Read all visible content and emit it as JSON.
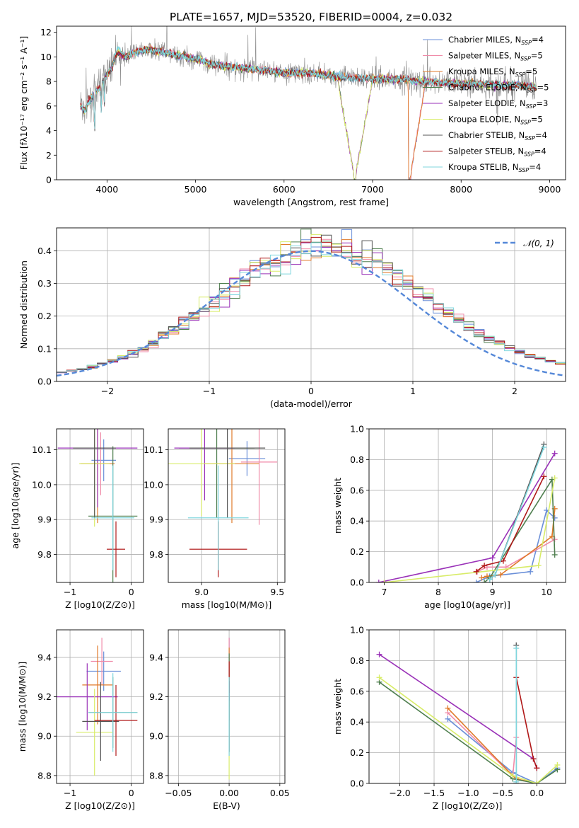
{
  "figure_title": "PLATE=1657, MJD=53520, FIBERID=0004, z=0.032",
  "colors": {
    "Chabrier MILES": "#6a8fd8",
    "Salpeter MILES": "#f08aa8",
    "Kroupa MILES": "#e07a2a",
    "Chabrier ELODIE": "#4f7f4f",
    "Salpeter ELODIE": "#9a32b8",
    "Kroupa ELODIE": "#d8ec68",
    "Chabrier STELIB": "#555555",
    "Salpeter STELIB": "#b01818",
    "Kroupa STELIB": "#7fd6de",
    "data": "#8a8a8a",
    "normal": "#5588d8"
  },
  "chart_data": [
    {
      "id": "spectrum",
      "type": "line",
      "title": "PLATE=1657, MJD=53520, FIBERID=0004, z=0.032",
      "xlabel": "wavelength [Angstrom, rest frame]",
      "ylabel": "Flux [fλ10⁻¹⁷ erg cm⁻² s⁻¹ A⁻¹]",
      "xlim": [
        3430,
        9180
      ],
      "ylim": [
        0,
        12.5
      ],
      "xticks": [
        4000,
        5000,
        6000,
        7000,
        8000,
        9000
      ],
      "yticks": [
        0,
        2,
        4,
        6,
        8,
        10,
        12
      ],
      "grid": false,
      "legend_position": "top-right",
      "x": [
        3700,
        3750,
        3800,
        3850,
        3900,
        3950,
        4000,
        4050,
        4100,
        4150,
        4200,
        4300,
        4400,
        4500,
        4600,
        4700,
        4800,
        4900,
        5000,
        5200,
        5400,
        5600,
        5800,
        6000,
        6200,
        6400,
        6600,
        6800,
        7000,
        7200,
        7400,
        7420,
        7600,
        7800,
        8000,
        8200,
        8400,
        8600,
        8800,
        8850
      ],
      "series": [
        {
          "name": "Chabrier MILES, N_SSP=4",
          "values": [
            6.0,
            5.6,
            6.4,
            6.9,
            7.4,
            7.9,
            8.6,
            9.0,
            10.2,
            10.3,
            10.0,
            10.3,
            10.5,
            10.6,
            10.4,
            10.3,
            10.1,
            10.0,
            9.8,
            9.4,
            9.2,
            9.0,
            8.9,
            8.7,
            8.7,
            8.6,
            8.4,
            8.3,
            8.2,
            8.2,
            8.2,
            0,
            8.0,
            7.9,
            7.8,
            7.8,
            7.7,
            7.7,
            7.6,
            7.6
          ]
        },
        {
          "name": "Salpeter MILES, N_SSP=5",
          "values": [
            6.0,
            5.6,
            6.4,
            6.9,
            7.4,
            7.9,
            8.6,
            9.0,
            10.2,
            10.3,
            10.0,
            10.3,
            10.5,
            10.6,
            10.4,
            10.3,
            10.1,
            10.0,
            9.8,
            9.4,
            9.2,
            9.0,
            8.9,
            8.7,
            8.7,
            8.6,
            8.4,
            8.3,
            8.2,
            8.2,
            8.2,
            0,
            8.0,
            7.9,
            7.8,
            7.8,
            7.7,
            7.7,
            7.6,
            7.6
          ]
        },
        {
          "name": "Kroupa MILES, N_SSP=5",
          "values": [
            6.0,
            5.6,
            6.4,
            6.9,
            7.4,
            7.9,
            8.6,
            9.0,
            10.2,
            10.3,
            10.0,
            10.3,
            10.5,
            10.6,
            10.4,
            10.3,
            10.1,
            10.0,
            9.8,
            9.4,
            9.2,
            9.0,
            8.9,
            8.7,
            8.7,
            8.6,
            8.4,
            8.3,
            8.2,
            8.2,
            8.2,
            0,
            8.0,
            7.9,
            7.8,
            7.8,
            7.7,
            7.7,
            7.6,
            7.6
          ]
        },
        {
          "name": "Chabrier ELODIE, N_SSP=5",
          "values": [
            6.0,
            5.6,
            6.4,
            6.9,
            7.4,
            7.9,
            8.6,
            9.0,
            10.2,
            10.3,
            10.0,
            10.3,
            10.5,
            10.6,
            10.4,
            10.3,
            10.1,
            10.0,
            9.8,
            9.4,
            9.2,
            9.0,
            8.9,
            8.7,
            8.7,
            8.6,
            8.4,
            0,
            8.2,
            8.2,
            8.2,
            8.1,
            8.0,
            7.9,
            7.8,
            7.8,
            7.7,
            7.7,
            7.6,
            7.6
          ]
        },
        {
          "name": "Salpeter ELODIE, N_SSP=3",
          "values": [
            6.0,
            5.6,
            6.4,
            6.9,
            7.4,
            7.9,
            8.6,
            9.0,
            10.2,
            10.3,
            10.0,
            10.3,
            10.5,
            10.6,
            10.4,
            10.3,
            10.1,
            10.0,
            9.8,
            9.4,
            9.2,
            9.0,
            8.9,
            8.7,
            8.7,
            8.6,
            8.4,
            0,
            8.2,
            8.2,
            8.2,
            8.1,
            8.0,
            7.9,
            7.8,
            7.8,
            7.7,
            7.7,
            7.6,
            7.6
          ]
        },
        {
          "name": "Kroupa ELODIE, N_SSP=5",
          "values": [
            6.0,
            5.6,
            6.4,
            6.9,
            7.4,
            7.9,
            8.6,
            9.0,
            10.2,
            10.3,
            10.0,
            10.3,
            10.5,
            10.6,
            10.4,
            10.3,
            10.1,
            10.0,
            9.8,
            9.4,
            9.2,
            9.0,
            8.9,
            8.7,
            8.7,
            8.6,
            8.4,
            0,
            8.2,
            8.2,
            8.2,
            8.1,
            8.0,
            7.9,
            7.8,
            7.8,
            7.7,
            7.7,
            7.6,
            7.6
          ]
        },
        {
          "name": "Chabrier STELIB, N_SSP=4",
          "values": [
            6.0,
            5.6,
            6.4,
            6.9,
            7.4,
            7.9,
            8.6,
            9.0,
            10.2,
            10.3,
            10.0,
            10.3,
            10.5,
            10.6,
            10.4,
            10.3,
            10.1,
            10.0,
            9.8,
            9.4,
            9.2,
            9.0,
            8.9,
            8.7,
            8.7,
            8.6,
            8.4,
            8.3,
            8.2,
            8.2,
            8.2,
            8.1,
            8.0,
            7.9,
            7.8,
            7.8,
            7.7,
            7.7,
            7.6,
            7.6
          ]
        },
        {
          "name": "Salpeter STELIB, N_SSP=4",
          "values": [
            6.0,
            5.6,
            6.4,
            6.9,
            7.4,
            7.9,
            8.6,
            9.0,
            10.2,
            10.3,
            10.0,
            10.3,
            10.5,
            10.6,
            10.4,
            10.3,
            10.1,
            10.0,
            9.8,
            9.4,
            9.2,
            9.0,
            8.9,
            8.7,
            8.7,
            8.6,
            8.4,
            8.3,
            8.2,
            8.2,
            8.2,
            8.1,
            8.0,
            7.9,
            7.8,
            7.8,
            7.7,
            7.7,
            7.6,
            7.6
          ]
        },
        {
          "name": "Kroupa STELIB, N_SSP=4",
          "values": [
            6.0,
            5.6,
            6.4,
            6.9,
            7.4,
            7.9,
            8.6,
            9.0,
            10.6,
            10.6,
            10.1,
            10.3,
            10.5,
            10.6,
            10.4,
            10.3,
            10.1,
            10.0,
            9.8,
            9.4,
            9.2,
            9.0,
            8.9,
            8.7,
            8.7,
            8.6,
            8.4,
            8.3,
            8.2,
            8.2,
            8.2,
            8.1,
            8.0,
            7.9,
            7.8,
            7.8,
            7.7,
            7.7,
            7.6,
            7.6
          ]
        }
      ]
    },
    {
      "id": "residuals",
      "type": "line",
      "xlabel": "(data-model)/error",
      "ylabel": "Normed distribution",
      "xlim": [
        -2.5,
        2.5
      ],
      "ylim": [
        0,
        0.47
      ],
      "xticks": [
        -2,
        -1,
        0,
        1,
        2
      ],
      "yticks": [
        0.0,
        0.1,
        0.2,
        0.3,
        0.4
      ],
      "grid": true,
      "legend": [
        "𝒩(0, 1)"
      ],
      "legend_position": "top-right",
      "histogram_bin_width": 0.1,
      "normal_curve": {
        "mu": 0,
        "sigma": 1
      }
    },
    {
      "id": "age-vs-Z",
      "type": "scatter",
      "xlabel": "Z [log10(Z/Z⊙)]",
      "ylabel": "age [log10(age/yr)]",
      "xlim": [
        -1.22,
        0.2
      ],
      "ylim": [
        9.72,
        10.16
      ],
      "xticks": [
        -1,
        0
      ],
      "yticks": [
        9.8,
        9.9,
        10.0,
        10.1
      ],
      "grid": true,
      "points": [
        {
          "x": -0.45,
          "y": 10.07,
          "xerr": 0.2,
          "yerr": 0.06
        },
        {
          "x": -0.5,
          "y": 10.06,
          "xerr": 0.15,
          "yerr": 0.09
        },
        {
          "x": -0.55,
          "y": 10.06,
          "xerr": 0.28,
          "yerr": 0.17
        },
        {
          "x": -0.3,
          "y": 9.91,
          "xerr": 0.4,
          "yerr": 0.2
        },
        {
          "x": -0.55,
          "y": 10.105,
          "xerr": 0.65,
          "yerr": 0.17
        },
        {
          "x": -0.6,
          "y": 10.06,
          "xerr": 0.25,
          "yerr": 0.18
        },
        {
          "x": -0.6,
          "y": 10.105,
          "xerr": 0.35,
          "yerr": 0.2
        },
        {
          "x": -0.25,
          "y": 9.815,
          "xerr": 0.15,
          "yerr": 0.08
        },
        {
          "x": -0.3,
          "y": 9.905,
          "xerr": 0.35,
          "yerr": 0.15
        }
      ]
    },
    {
      "id": "age-vs-mass",
      "type": "scatter",
      "xlabel": "mass [log10(M/M⊙)]",
      "ylabel": "",
      "xlim": [
        8.78,
        9.55
      ],
      "ylim": [
        9.72,
        10.16
      ],
      "xticks": [
        9.0,
        9.5
      ],
      "yticks": [
        9.8,
        9.9,
        10.0,
        10.1
      ],
      "grid": true,
      "points": [
        {
          "x": 9.3,
          "y": 10.075,
          "xerr": 0.12,
          "yerr": 0.05
        },
        {
          "x": 9.38,
          "y": 10.065,
          "xerr": 0.12,
          "yerr": 0.18
        },
        {
          "x": 9.2,
          "y": 10.06,
          "xerr": 0.18,
          "yerr": 0.17
        },
        {
          "x": 9.1,
          "y": 10.105,
          "xerr": 0.25,
          "yerr": 0.2
        },
        {
          "x": 9.02,
          "y": 10.105,
          "xerr": 0.2,
          "yerr": 0.15
        },
        {
          "x": 9.0,
          "y": 10.06,
          "xerr": 0.22,
          "yerr": 0.15
        },
        {
          "x": 9.17,
          "y": 10.105,
          "xerr": 0.25,
          "yerr": 0.2
        },
        {
          "x": 9.11,
          "y": 9.815,
          "xerr": 0.19,
          "yerr": 0.08
        },
        {
          "x": 9.11,
          "y": 9.905,
          "xerr": 0.2,
          "yerr": 0.15
        }
      ]
    },
    {
      "id": "weight-vs-age",
      "type": "line",
      "xlabel": "age [log10(age/yr)]",
      "ylabel": "mass weight",
      "xlim": [
        6.72,
        10.35
      ],
      "ylim": [
        0,
        1.0
      ],
      "xticks": [
        7,
        8,
        9,
        10
      ],
      "yticks": [
        0.0,
        0.2,
        0.4,
        0.6,
        0.8,
        1.0
      ],
      "grid": true,
      "series": [
        {
          "x": [
            8.7,
            8.95,
            9.7,
            10.0,
            10.15
          ],
          "y": [
            0.0,
            0.04,
            0.07,
            0.47,
            0.42
          ]
        },
        {
          "x": [
            8.72,
            8.9,
            9.25,
            10.15
          ],
          "y": [
            0.07,
            0.1,
            0.1,
            0.28
          ]
        },
        {
          "x": [
            8.8,
            8.9,
            9.15,
            10.1,
            10.15
          ],
          "y": [
            0.03,
            0.04,
            0.05,
            0.3,
            0.48
          ]
        },
        {
          "x": [
            8.85,
            8.95,
            10.1,
            10.15
          ],
          "y": [
            0.0,
            0.03,
            0.67,
            0.18
          ]
        },
        {
          "x": [
            6.9,
            9.0,
            10.15
          ],
          "y": [
            0.0,
            0.16,
            0.84
          ]
        },
        {
          "x": [
            7.0,
            9.85,
            10.15
          ],
          "y": [
            0.0,
            0.11,
            0.68
          ]
        },
        {
          "x": [
            8.95,
            9.05,
            9.95
          ],
          "y": [
            0.02,
            0.05,
            0.9
          ]
        },
        {
          "x": [
            8.7,
            8.85,
            9.2,
            9.95
          ],
          "y": [
            0.07,
            0.11,
            0.14,
            0.69
          ]
        },
        {
          "x": [
            8.95,
            9.05,
            9.95
          ],
          "y": [
            0.02,
            0.05,
            0.88
          ]
        }
      ]
    },
    {
      "id": "mass-vs-Z",
      "type": "scatter",
      "xlabel": "Z [log10(Z/Z⊙)]",
      "ylabel": "mass [log10(M/M⊙)]",
      "xlim": [
        -1.22,
        0.2
      ],
      "ylim": [
        8.76,
        9.54
      ],
      "xticks": [
        -1,
        0
      ],
      "yticks": [
        8.8,
        9.0,
        9.2,
        9.4
      ],
      "grid": true,
      "points": [
        {
          "x": -0.45,
          "y": 9.33,
          "xerr": 0.28,
          "yerr": 0.1
        },
        {
          "x": -0.48,
          "y": 9.38,
          "xerr": 0.18,
          "yerr": 0.12
        },
        {
          "x": -0.55,
          "y": 9.26,
          "xerr": 0.25,
          "yerr": 0.2
        },
        {
          "x": -0.3,
          "y": 9.12,
          "xerr": 0.4,
          "yerr": 0.18
        },
        {
          "x": -0.72,
          "y": 9.2,
          "xerr": 0.5,
          "yerr": 0.17
        },
        {
          "x": -0.6,
          "y": 9.02,
          "xerr": 0.3,
          "yerr": 0.22
        },
        {
          "x": -0.5,
          "y": 9.075,
          "xerr": 0.3,
          "yerr": 0.2
        },
        {
          "x": -0.25,
          "y": 9.08,
          "xerr": 0.35,
          "yerr": 0.18
        },
        {
          "x": -0.3,
          "y": 9.12,
          "xerr": 0.4,
          "yerr": 0.2
        }
      ]
    },
    {
      "id": "mass-vs-EBV",
      "type": "scatter",
      "xlabel": "E(B-V)",
      "ylabel": "",
      "xlim": [
        -0.06,
        0.055
      ],
      "ylim": [
        8.76,
        9.54
      ],
      "xticks": [
        -0.05,
        0.0,
        0.05
      ],
      "yticks": [
        8.8,
        9.0,
        9.2,
        9.4
      ],
      "grid": true,
      "points": [
        {
          "x": 0.0,
          "y": 9.4,
          "yerr": 0.1
        },
        {
          "x": 0.0,
          "y": 9.36,
          "yerr": 0.14
        },
        {
          "x": 0.0,
          "y": 9.3,
          "yerr": 0.15
        },
        {
          "x": 0.0,
          "y": 9.25,
          "yerr": 0.17
        },
        {
          "x": 0.0,
          "y": 9.1,
          "yerr": 0.18
        },
        {
          "x": 0.0,
          "y": 8.98,
          "yerr": 0.2
        },
        {
          "x": 0.0,
          "y": 9.1,
          "yerr": 0.18
        },
        {
          "x": 0.0,
          "y": 9.3,
          "yerr": 0.08
        },
        {
          "x": 0.0,
          "y": 9.1,
          "yerr": 0.2
        }
      ]
    },
    {
      "id": "weight-vs-Z",
      "type": "line",
      "xlabel": "Z [log10(Z/Z⊙)]",
      "ylabel": "mass weight",
      "xlim": [
        -2.45,
        0.42
      ],
      "ylim": [
        0,
        1.0
      ],
      "xticks": [
        -2.0,
        -1.5,
        -1.0,
        -0.5,
        0.0
      ],
      "yticks": [
        0.0,
        0.2,
        0.4,
        0.6,
        0.8,
        1.0
      ],
      "grid": true,
      "series": [
        {
          "x": [
            -1.3,
            -0.35,
            0.0,
            0.3
          ],
          "y": [
            0.42,
            0.07,
            0.0,
            0.1
          ]
        },
        {
          "x": [
            -1.3,
            -0.35,
            -0.3
          ],
          "y": [
            0.46,
            0.05,
            0.3
          ]
        },
        {
          "x": [
            -1.3,
            -0.35,
            -0.3,
            0.0
          ],
          "y": [
            0.49,
            0.05,
            0.03,
            0.0
          ]
        },
        {
          "x": [
            -2.3,
            -0.35,
            0.0,
            0.3
          ],
          "y": [
            0.66,
            0.03,
            0.0,
            0.09
          ]
        },
        {
          "x": [
            -2.3,
            -0.05,
            0.0
          ],
          "y": [
            0.84,
            0.16,
            0.1
          ]
        },
        {
          "x": [
            -2.3,
            -0.35,
            0.0,
            0.3
          ],
          "y": [
            0.69,
            0.05,
            0.0,
            0.12
          ]
        },
        {
          "x": [
            -0.3,
            -0.3
          ],
          "y": [
            0.9,
            0.0
          ]
        },
        {
          "x": [
            -0.3,
            -0.05,
            0.0
          ],
          "y": [
            0.69,
            0.16,
            0.1
          ]
        },
        {
          "x": [
            -0.3,
            -0.3
          ],
          "y": [
            0.88,
            0.01
          ]
        }
      ]
    }
  ]
}
